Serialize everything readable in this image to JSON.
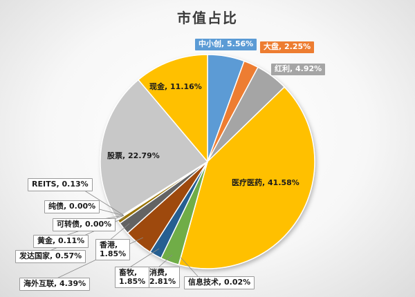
{
  "chart_data": {
    "type": "pie",
    "title": "市值占比",
    "slices": [
      {
        "name": "中小创",
        "value": 5.56,
        "label": "中小创, 5.56%",
        "color": "#5b9bd5"
      },
      {
        "name": "大盘",
        "value": 2.25,
        "label": "大盘, 2.25%",
        "color": "#ed7d31"
      },
      {
        "name": "红利",
        "value": 4.92,
        "label": "红利, 4.92%",
        "color": "#a5a5a5"
      },
      {
        "name": "医疗医药",
        "value": 41.58,
        "label": "医疗医药, 41.58%",
        "color": "#ffc000"
      },
      {
        "name": "信息技术",
        "value": 0.02,
        "label": "信息技术, 0.02%",
        "color": "#4472c4"
      },
      {
        "name": "消费",
        "value": 2.81,
        "label": "消费,\n2.81%",
        "color": "#70ad47"
      },
      {
        "name": "畜牧",
        "value": 1.85,
        "label": "畜牧,\n1.85%",
        "color": "#255e91"
      },
      {
        "name": "海外互联",
        "value": 4.39,
        "label": "海外互联, 4.39%",
        "color": "#9e480e"
      },
      {
        "name": "香港",
        "value": 1.85,
        "label": "香港,\n1.85%",
        "color": "#636363"
      },
      {
        "name": "发达国家",
        "value": 0.57,
        "label": "发达国家, 0.57%",
        "color": "#997300"
      },
      {
        "name": "黄金",
        "value": 0.11,
        "label": "黄金, 0.11%",
        "color": "#264478"
      },
      {
        "name": "可转债",
        "value": 0.0,
        "label": "可转债, 0.00%",
        "color": "#43682b"
      },
      {
        "name": "纯债",
        "value": 0.0,
        "label": "纯债, 0.00%",
        "color": "#698ed0"
      },
      {
        "name": "REITS",
        "value": 0.13,
        "label": "REITS, 0.13%",
        "color": "#f1975a"
      },
      {
        "name": "股票",
        "value": 22.79,
        "label": "股票, 22.79%",
        "color": "#c8c8c8"
      },
      {
        "name": "现金",
        "value": 11.16,
        "label": "现金, 11.16%",
        "color": "#ffc000"
      }
    ]
  }
}
